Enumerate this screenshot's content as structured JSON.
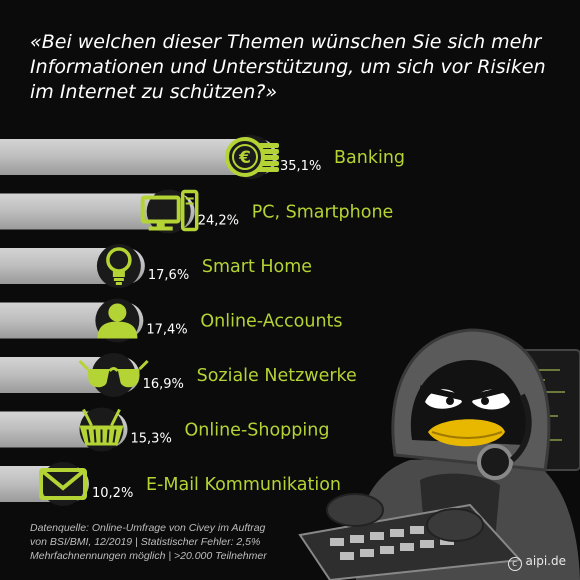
{
  "chart_data": {
    "type": "bar",
    "title": "«Bei welchen dieser Themen wünschen Sie sich mehr Informationen und Unterstützung, um sich vor Risiken im Internet zu schützen?»",
    "categories": [
      "Banking",
      "PC, Smartphone",
      "Smart Home",
      "Online-Accounts",
      "Soziale Netzwerke",
      "Online-Shopping",
      "E-Mail Kommunikation"
    ],
    "values": [
      35.1,
      24.2,
      17.6,
      17.4,
      16.9,
      15.3,
      10.2
    ],
    "value_labels": [
      "35,1%",
      "24,2%",
      "17,6%",
      "17,4%",
      "16,9%",
      "15,3%",
      "10,2%"
    ],
    "icons": [
      "euro-coins-icon",
      "computer-icon",
      "lightbulb-icon",
      "user-icon",
      "glasses-icon",
      "shopping-basket-icon",
      "envelope-icon"
    ],
    "grid": false,
    "legend": "none"
  },
  "footer": {
    "source_line1": "Datenquelle: Online-Umfrage von Civey im Auftrag",
    "source_line2": "von BSI/BMI, 12/2019 | Statistischer Fehler: 2,5%",
    "source_line3": "Mehrfachnennungen möglich | >20.000 Teilnehmer",
    "credit": "aipi.de"
  },
  "colors": {
    "background": "#0b0b0b",
    "accent": "#b4d334",
    "bar": "#bdbdbd",
    "text": "#ffffff"
  }
}
